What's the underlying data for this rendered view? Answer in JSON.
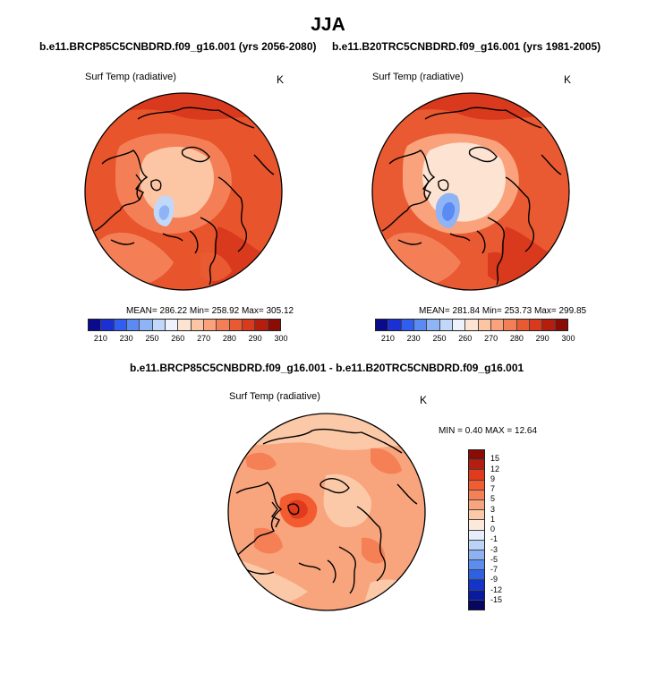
{
  "title": "JJA",
  "panels": [
    {
      "case": "b.e11.BRCP85C5CNBDRD.f09_g16.001 (yrs 2056-2080)",
      "variable": "Surf Temp (radiative)",
      "unit": "K",
      "stats": "MEAN= 286.22  Min= 258.92  Max= 305.12"
    },
    {
      "case": "b.e11.B20TRC5CNBDRD.f09_g16.001 (yrs 1981-2005)",
      "variable": "Surf Temp (radiative)",
      "unit": "K",
      "stats": "MEAN= 281.84  Min= 253.73  Max= 299.85"
    },
    {
      "case": "b.e11.BRCP85C5CNBDRD.f09_g16.001 - b.e11.B20TRC5CNBDRD.f09_g16.001",
      "variable": "Surf Temp (radiative)",
      "unit": "K",
      "stats": "MIN =   0.40 MAX =  12.64"
    }
  ],
  "abs_colorbar": {
    "colors": [
      "#0a0a8c",
      "#1a2fd6",
      "#2f5ef0",
      "#5a8af2",
      "#8fb4f6",
      "#c2d8fb",
      "#eef2fc",
      "#fde3d2",
      "#fcc5a4",
      "#f9a27c",
      "#f47f57",
      "#ea5a32",
      "#d9391c",
      "#b51e0e",
      "#8a0c05"
    ],
    "labels": [
      "210",
      "230",
      "250",
      "260",
      "270",
      "280",
      "290",
      "300"
    ]
  },
  "diff_colorbar": {
    "colors": [
      "#8a0c05",
      "#b51e0e",
      "#e23a1d",
      "#f25c30",
      "#f58056",
      "#f8a47d",
      "#fbc9a8",
      "#fde9dc",
      "#e6eefb",
      "#bcd3f8",
      "#8cb2f4",
      "#5b8cf0",
      "#2e60e4",
      "#1434c8",
      "#0a1aa0",
      "#05085e"
    ],
    "labels": [
      "15",
      "12",
      "9",
      "7",
      "5",
      "3",
      "1",
      "0",
      "-1",
      "-3",
      "-5",
      "-7",
      "-9",
      "-12",
      "-15"
    ]
  }
}
